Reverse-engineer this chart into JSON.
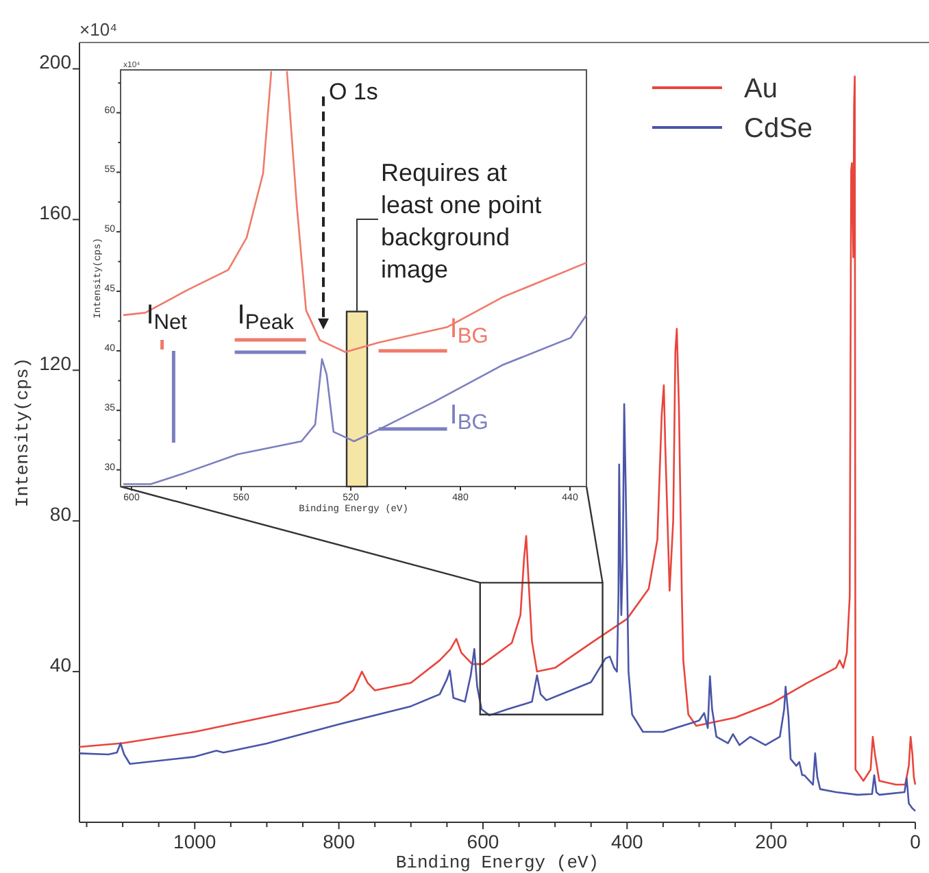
{
  "chart_data": [
    {
      "type": "line",
      "xlabel": "Binding Energy (eV)",
      "ylabel": "Intensity(cps)",
      "annotations": [
        "×10⁴"
      ],
      "xlim": [
        1160,
        0
      ],
      "ylim": [
        0,
        207
      ],
      "xticks": [
        {
          "value": 1150,
          "label": null
        },
        {
          "value": 1100,
          "label": null
        },
        {
          "value": 1050,
          "label": null
        },
        1000,
        {
          "value": 950,
          "label": null
        },
        {
          "value": 900,
          "label": null
        },
        {
          "value": 850,
          "label": null
        },
        800,
        {
          "value": 750,
          "label": null
        },
        {
          "value": 700,
          "label": null
        },
        {
          "value": 650,
          "label": null
        },
        600,
        {
          "value": 550,
          "label": null
        },
        {
          "value": 500,
          "label": null
        },
        {
          "value": 450,
          "label": null
        },
        400,
        {
          "value": 350,
          "label": null
        },
        {
          "value": 300,
          "label": null
        },
        {
          "value": 250,
          "label": null
        },
        200,
        {
          "value": 150,
          "label": null
        },
        {
          "value": 100,
          "label": null
        },
        {
          "value": 50,
          "label": null
        },
        0
      ],
      "yticks": [
        40,
        80,
        120,
        160,
        200
      ],
      "legend": "top right",
      "series": [
        {
          "name": "Au",
          "color": "#e8453c",
          "x": [
            1160,
            1100,
            1000,
            900,
            800,
            780,
            768,
            760,
            750,
            700,
            660,
            645,
            637,
            630,
            615,
            600,
            560,
            548,
            543,
            540,
            537,
            532,
            525,
            500,
            450,
            400,
            370,
            358,
            352,
            349,
            347,
            341,
            336,
            333,
            331,
            328,
            324,
            322,
            315,
            304,
            250,
            200,
            150,
            110,
            105,
            100,
            95,
            91,
            89,
            88,
            86,
            85,
            84,
            83,
            72,
            62,
            59,
            56,
            50,
            27,
            14,
            9,
            6.5,
            4,
            2,
            0
          ],
          "values": [
            20,
            21,
            24,
            28,
            32,
            35,
            40,
            37,
            35,
            37,
            43,
            46,
            48.7,
            45,
            42,
            42,
            47.6,
            55,
            70,
            76,
            65,
            48,
            40,
            41,
            47.6,
            54,
            62,
            75,
            108,
            116,
            100,
            61.5,
            80,
            125,
            131,
            110,
            60,
            43,
            28.6,
            25.6,
            27.8,
            31.5,
            37,
            41,
            43,
            41,
            45,
            60,
            173,
            175,
            150,
            190,
            198,
            14,
            11,
            14,
            22.7,
            18,
            11,
            10,
            10,
            15,
            22.7,
            18,
            12,
            10
          ]
        },
        {
          "name": "CdSe",
          "color": "#4a55a8",
          "x": [
            1160,
            1120,
            1108,
            1103,
            1098,
            1090,
            1000,
            970,
            960,
            900,
            800,
            700,
            660,
            650,
            646,
            641,
            625,
            617,
            612,
            608,
            602,
            591,
            566,
            532,
            527,
            525,
            520,
            512,
            450,
            430,
            424,
            418,
            414,
            412,
            411,
            409,
            408,
            406,
            404,
            402,
            398,
            393,
            378,
            350,
            300,
            293,
            288,
            285,
            282,
            276,
            260,
            253,
            244,
            229,
            208,
            188,
            182,
            180,
            176,
            173,
            165,
            161,
            157,
            154,
            142,
            139,
            136,
            132,
            110,
            80,
            60,
            57,
            54,
            50,
            15,
            12,
            9,
            4,
            0
          ],
          "values": [
            18.3,
            18,
            18.5,
            21,
            18,
            15.5,
            17.4,
            19,
            18.5,
            20.9,
            26,
            30.8,
            34,
            38,
            40.3,
            33,
            32,
            39,
            46,
            36,
            30,
            28.4,
            30,
            32,
            37,
            39,
            34,
            32.4,
            37.2,
            43.5,
            44,
            41,
            40,
            60,
            95,
            65,
            55,
            70,
            111,
            90,
            40,
            28.6,
            24,
            24,
            27,
            29,
            25,
            38.8,
            30,
            22.7,
            21,
            23.4,
            20.5,
            22.7,
            20.5,
            22.7,
            30,
            36,
            28,
            16.8,
            15,
            16,
            12.5,
            12.5,
            10,
            18.3,
            12,
            8.8,
            8,
            7.3,
            7.5,
            12.5,
            8,
            7.3,
            8,
            11.7,
            5,
            3.7,
            3
          ]
        }
      ]
    },
    {
      "type": "line",
      "xlabel": "Binding Energy (eV)",
      "ylabel": "Intensity(cps)",
      "annotations": [
        "x10⁴",
        {
          "text": "O 1s",
          "x": 530,
          "y": 41.8
        },
        "I$_{Net}$",
        "I$_{Peak}$",
        "I$_{BG}$",
        "I$_{BG}$"
      ],
      "bands": [
        {
          "axis": "x",
          "from": 521.5,
          "to": 514,
          "label": "Requires at least one point background image",
          "color": "#f6e6a6"
        }
      ],
      "xlim": [
        604,
        434
      ],
      "ylim": [
        28.6,
        63.6
      ],
      "xticks": [
        600,
        {
          "value": 580,
          "label": null
        },
        560,
        {
          "value": 540,
          "label": null
        },
        520,
        {
          "value": 500,
          "label": null
        },
        480,
        {
          "value": 460,
          "label": null
        },
        440
      ],
      "yticks": [
        30,
        {
          "value": 32.5,
          "label": null
        },
        35,
        {
          "value": 37.5,
          "label": null
        },
        40,
        {
          "value": 42.5,
          "label": null
        },
        45,
        {
          "value": 47.5,
          "label": null
        },
        50,
        {
          "value": 52.5,
          "label": null
        },
        55,
        {
          "value": 57.5,
          "label": null
        },
        60,
        {
          "value": 62.5,
          "label": null
        }
      ],
      "series": [
        {
          "color": "#f07a6a",
          "x": [
            603,
            595,
            579.7,
            564.7,
            558,
            552,
            549,
            546,
            543.3,
            539.7,
            536.3,
            531.3,
            522,
            509.7,
            484.7,
            464.7,
            434
          ],
          "values": [
            43.0,
            43.2,
            45.1,
            46.8,
            49.5,
            54.9,
            63.5,
            null,
            63.5,
            52.2,
            43.4,
            40.9,
            39.9,
            40.7,
            42.0,
            44.5,
            47.4
          ]
        },
        {
          "color": "#7b7fc0",
          "x": [
            603,
            593,
            581,
            561.3,
            538,
            533,
            530.5,
            528.8,
            526.3,
            518.8,
            509.7,
            489.7,
            464.7,
            439.7,
            434
          ],
          "values": [
            28.8,
            28.8,
            29.7,
            31.3,
            32.4,
            33.8,
            39.3,
            38.0,
            33.2,
            32.4,
            33.4,
            35.7,
            38.8,
            41.1,
            43.0
          ]
        }
      ]
    }
  ]
}
